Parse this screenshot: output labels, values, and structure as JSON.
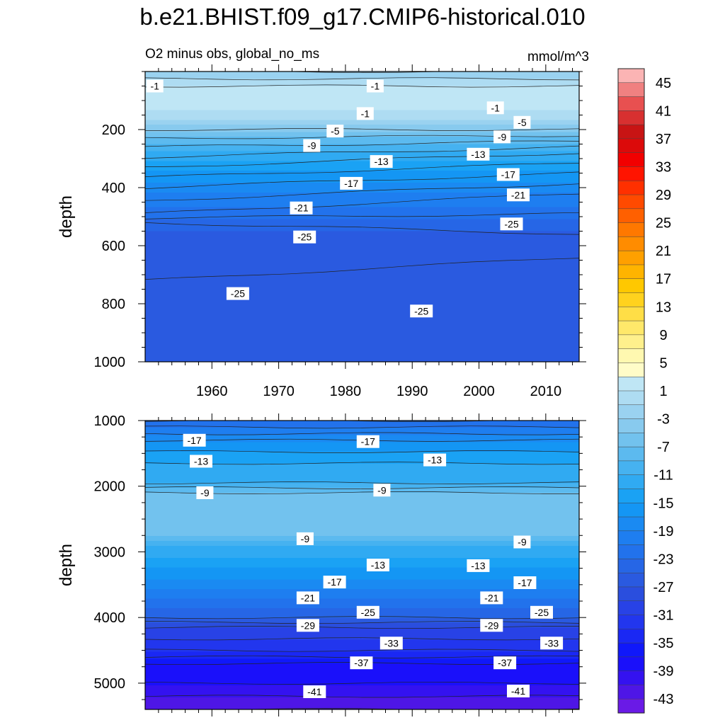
{
  "title": "b.e21.BHIST.f09_g17.CMIP6-historical.010",
  "subtitle_left": "O2 minus obs, global_no_ms",
  "subtitle_right": "mmol/m^3",
  "chart_data": [
    {
      "type": "heatmap",
      "name": "upper-panel",
      "ylabel": "depth",
      "y_reversed": true,
      "xlim": [
        1950,
        2015
      ],
      "ylim": [
        0,
        1000
      ],
      "x_ticks": [
        1960,
        1970,
        1980,
        1990,
        2000,
        2010
      ],
      "x_ticklabels": [
        "1960",
        "1970",
        "1980",
        "1990",
        "2000",
        "2010"
      ],
      "y_ticks": [
        200,
        400,
        600,
        800,
        1000
      ],
      "y_ticklabels": [
        "200",
        "400",
        "600",
        "800",
        "1000"
      ],
      "depth_profile_start": [
        [
          0,
          -3
        ],
        [
          50,
          1
        ],
        [
          130,
          1
        ],
        [
          170,
          -3
        ],
        [
          260,
          -9
        ],
        [
          400,
          -17
        ],
        [
          490,
          -21
        ],
        [
          520,
          -25
        ],
        [
          720,
          -27
        ],
        [
          880,
          -25
        ],
        [
          1000,
          -25
        ]
      ],
      "depth_profile_end": [
        [
          0,
          -3
        ],
        [
          50,
          1
        ],
        [
          150,
          1
        ],
        [
          200,
          -5
        ],
        [
          280,
          -13
        ],
        [
          420,
          -21
        ],
        [
          560,
          -25
        ],
        [
          640,
          -27
        ],
        [
          790,
          -27
        ],
        [
          1000,
          -25
        ]
      ],
      "contour_labels": [
        {
          "text": "-1",
          "x": 1950.5,
          "y": 50
        },
        {
          "text": "-1",
          "x": 1983.5,
          "y": 50
        },
        {
          "text": "-1",
          "x": 1982,
          "y": 145
        },
        {
          "text": "-1",
          "x": 2001.5,
          "y": 125
        },
        {
          "text": "-5",
          "x": 1977.5,
          "y": 205
        },
        {
          "text": "-5",
          "x": 2005.5,
          "y": 175
        },
        {
          "text": "-9",
          "x": 1974,
          "y": 255
        },
        {
          "text": "-9",
          "x": 2002.5,
          "y": 225
        },
        {
          "text": "-13",
          "x": 1984,
          "y": 310
        },
        {
          "text": "-13",
          "x": 1998.5,
          "y": 285
        },
        {
          "text": "-17",
          "x": 1979.5,
          "y": 385
        },
        {
          "text": "-17",
          "x": 2003,
          "y": 355
        },
        {
          "text": "-21",
          "x": 1972,
          "y": 470
        },
        {
          "text": "-21",
          "x": 2004.5,
          "y": 425
        },
        {
          "text": "-25",
          "x": 1972.5,
          "y": 570
        },
        {
          "text": "-25",
          "x": 2003.5,
          "y": 525
        },
        {
          "text": "-25",
          "x": 1962.5,
          "y": 765
        },
        {
          "text": "-25",
          "x": 1990,
          "y": 825
        }
      ]
    },
    {
      "type": "heatmap",
      "name": "lower-panel",
      "ylabel": "depth",
      "y_reversed": true,
      "xlim": [
        1950,
        2015
      ],
      "ylim": [
        1000,
        5400
      ],
      "y_ticks": [
        1000,
        2000,
        3000,
        4000,
        5000
      ],
      "y_ticklabels": [
        "1000",
        "2000",
        "3000",
        "4000",
        "5000"
      ],
      "depth_profile": [
        [
          1000,
          -23
        ],
        [
          1300,
          -17
        ],
        [
          1650,
          -13
        ],
        [
          1950,
          -11
        ],
        [
          2100,
          -7
        ],
        [
          2750,
          -7
        ],
        [
          2900,
          -11
        ],
        [
          3400,
          -17
        ],
        [
          3700,
          -21
        ],
        [
          4000,
          -25
        ],
        [
          4150,
          -29
        ],
        [
          4500,
          -33
        ],
        [
          4700,
          -37
        ],
        [
          5000,
          -39
        ],
        [
          5200,
          -41
        ],
        [
          5400,
          -43
        ]
      ],
      "contour_labels": [
        {
          "text": "-17",
          "x": 1956,
          "y": 1300
        },
        {
          "text": "-17",
          "x": 1982,
          "y": 1320
        },
        {
          "text": "-13",
          "x": 1957,
          "y": 1620
        },
        {
          "text": "-13",
          "x": 1992,
          "y": 1600
        },
        {
          "text": "-9",
          "x": 1958,
          "y": 2100
        },
        {
          "text": "-9",
          "x": 1984.5,
          "y": 2060
        },
        {
          "text": "-9",
          "x": 1973,
          "y": 2800
        },
        {
          "text": "-9",
          "x": 2005.5,
          "y": 2850
        },
        {
          "text": "-13",
          "x": 1983.5,
          "y": 3200
        },
        {
          "text": "-13",
          "x": 1998.5,
          "y": 3210
        },
        {
          "text": "-17",
          "x": 1977,
          "y": 3460
        },
        {
          "text": "-17",
          "x": 2005.5,
          "y": 3470
        },
        {
          "text": "-21",
          "x": 1973,
          "y": 3700
        },
        {
          "text": "-21",
          "x": 2000.5,
          "y": 3700
        },
        {
          "text": "-25",
          "x": 1982,
          "y": 3920
        },
        {
          "text": "-25",
          "x": 2008,
          "y": 3920
        },
        {
          "text": "-29",
          "x": 1973,
          "y": 4120
        },
        {
          "text": "-29",
          "x": 2000.5,
          "y": 4120
        },
        {
          "text": "-33",
          "x": 1985.5,
          "y": 4390
        },
        {
          "text": "-33",
          "x": 2009.5,
          "y": 4390
        },
        {
          "text": "-37",
          "x": 1981,
          "y": 4690
        },
        {
          "text": "-37",
          "x": 2002.5,
          "y": 4690
        },
        {
          "text": "-41",
          "x": 1974,
          "y": 5130
        },
        {
          "text": "-41",
          "x": 2004.5,
          "y": 5120
        }
      ]
    }
  ],
  "colorbar": {
    "levels": [
      47,
      45,
      43,
      41,
      39,
      37,
      35,
      33,
      31,
      29,
      27,
      25,
      23,
      21,
      19,
      17,
      15,
      13,
      11,
      9,
      7,
      5,
      3,
      1,
      -1,
      -3,
      -5,
      -7,
      -9,
      -11,
      -13,
      -15,
      -17,
      -19,
      -21,
      -23,
      -25,
      -27,
      -29,
      -31,
      -33,
      -35,
      -37,
      -39,
      -41,
      -43,
      -45
    ],
    "labels": [
      "45",
      "41",
      "37",
      "33",
      "29",
      "25",
      "21",
      "17",
      "13",
      "9",
      "5",
      "1",
      "-3",
      "-7",
      "-11",
      "-15",
      "-19",
      "-23",
      "-27",
      "-31",
      "-35",
      "-39",
      "-43"
    ],
    "colors": [
      "#fbb4b4",
      "#f08080",
      "#e85050",
      "#d83030",
      "#c81414",
      "#dc0a0a",
      "#f20000",
      "#ff1400",
      "#ff3000",
      "#ff4a00",
      "#ff6000",
      "#ff7800",
      "#ff8c00",
      "#ffa000",
      "#ffb400",
      "#ffc800",
      "#ffd21e",
      "#ffde46",
      "#ffe86a",
      "#fff08c",
      "#fff8b0",
      "#fffcc8",
      "#bfe6f5",
      "#aedcf2",
      "#9ad2f0",
      "#88caee",
      "#72c2ee",
      "#5cbaef",
      "#46b2f0",
      "#30aaf2",
      "#1aa2f4",
      "#1496f4",
      "#1a8af2",
      "#1e7ef0",
      "#2272ec",
      "#2666e6",
      "#2a5ae0",
      "#2a4ede",
      "#2842e6",
      "#2236ee",
      "#1a28f4",
      "#1018fa",
      "#1a10fa",
      "#3412f0",
      "#4e16e6",
      "#6a1ae6"
    ]
  }
}
